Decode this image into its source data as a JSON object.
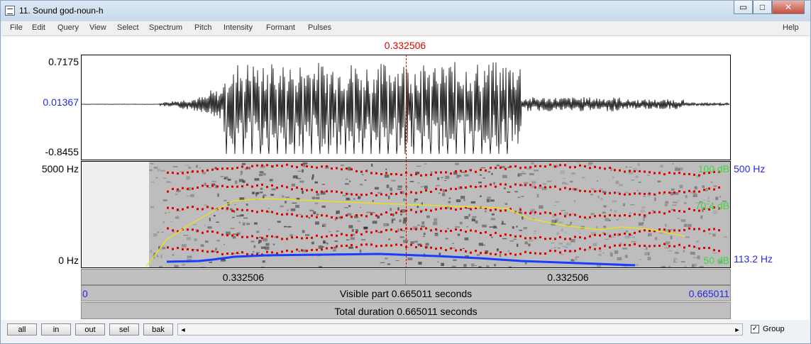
{
  "window": {
    "title": "11. Sound god-noun-h",
    "controls": {
      "minimize": "▭",
      "maximize": "□",
      "close": "✕"
    }
  },
  "menu": {
    "items": [
      "File",
      "Edit",
      "Query",
      "View",
      "Select",
      "Spectrum",
      "Pitch",
      "Intensity",
      "Formant",
      "Pulses"
    ],
    "help": "Help"
  },
  "cursor": {
    "time_label": "0.332506",
    "fraction": 0.5,
    "color": "#e00000"
  },
  "waveform": {
    "max": "0.7175",
    "zero": "0.01367",
    "min": "-0.8455"
  },
  "spectrogram": {
    "freq_top": "5000 Hz",
    "freq_bottom": "0 Hz",
    "intensity_top": "100 dB",
    "intensity_mid": "70.4 dB",
    "intensity_bottom": "50 dB",
    "pitch_top": "500 Hz",
    "pitch_bottom": "113.2 Hz"
  },
  "time_bars": {
    "left_half": "0.332506",
    "right_half": "0.332506",
    "start": "0",
    "visible_part": "Visible part 0.665011 seconds",
    "end": "0.665011",
    "total_duration": "Total duration 0.665011 seconds"
  },
  "bottom": {
    "buttons": [
      "all",
      "in",
      "out",
      "sel",
      "bak"
    ],
    "scroll_left": "◄",
    "scroll_right": "►",
    "group_checked": "✓",
    "group_label": "Group"
  },
  "colors": {
    "formant": "#e00000",
    "pitch": "#1a3cff",
    "intensity": "#f2e600",
    "label_blue": "#2a2ae0",
    "label_green": "#3dd63d"
  }
}
